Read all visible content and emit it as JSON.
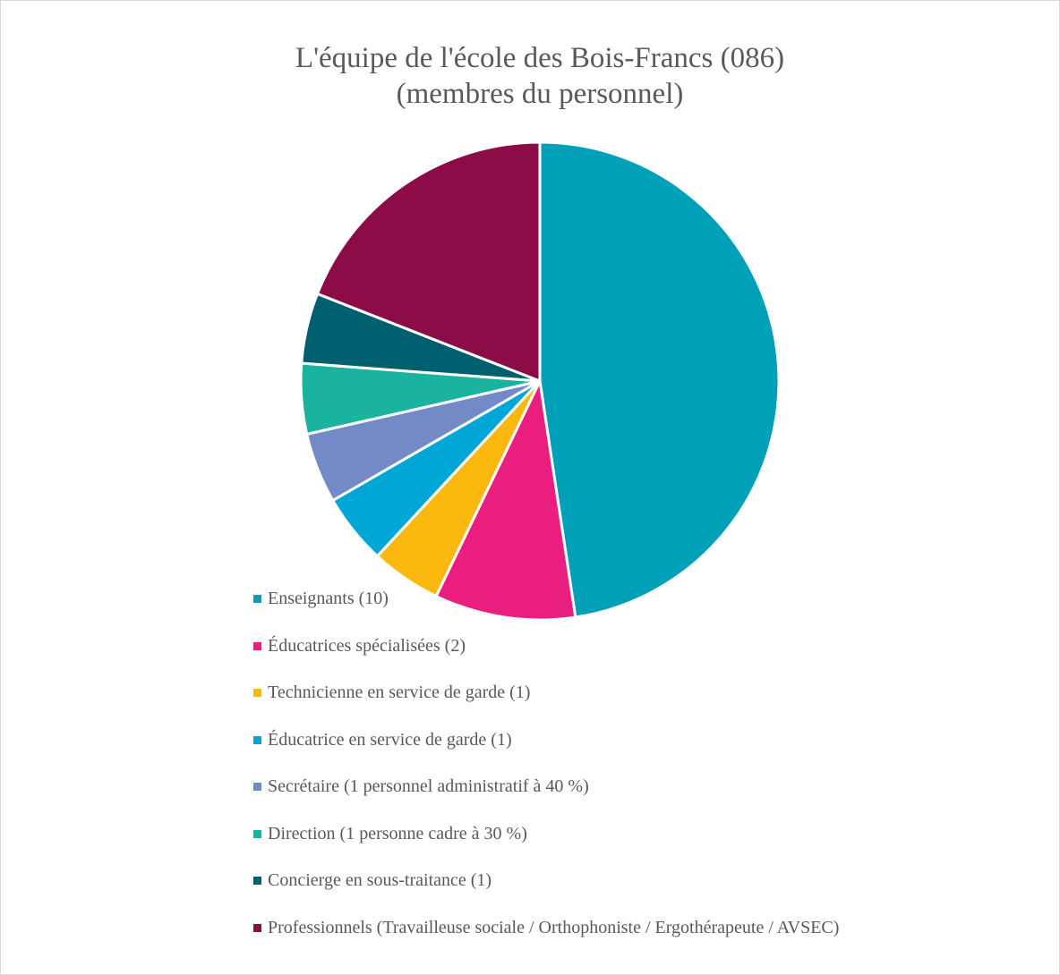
{
  "chart_data": {
    "type": "pie",
    "title": [
      "L'équipe de l'école des Bois-Francs (086)",
      "(membres du personnel)"
    ],
    "categories": [
      "Enseignants (10)",
      "Éducatrices spécialisées (2)",
      "Technicienne en service de garde (1)",
      "Éducatrice en service de garde (1)",
      "Secrétaire (1 personnel administratif à 40 %)",
      "Direction (1 personne cadre à 30 %)",
      "Concierge en sous-traitance (1)",
      "Professionnels (Travailleuse sociale / Orthophoniste / Ergothérapeute / AVSEC)"
    ],
    "values": [
      10,
      2,
      1,
      1,
      1,
      1,
      1,
      4
    ],
    "colors": [
      "#00a0b8",
      "#e91e7f",
      "#fbb80f",
      "#00a6d6",
      "#748ac6",
      "#1ab39f",
      "#005f6e",
      "#8c0c48"
    ],
    "legend": "bottom"
  }
}
